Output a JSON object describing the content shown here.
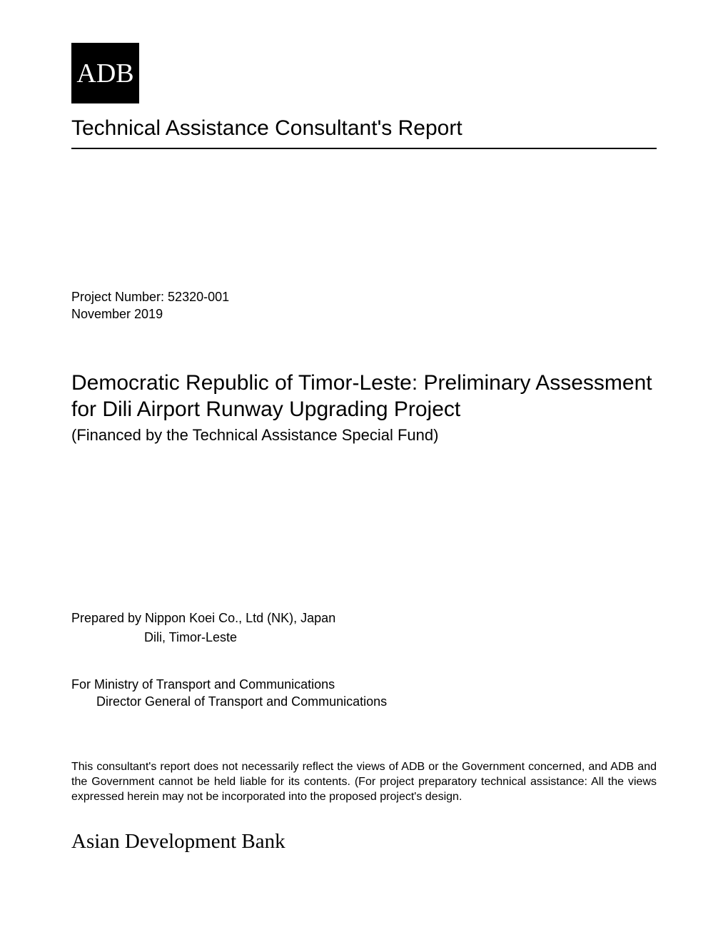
{
  "logo": {
    "text": "ADB"
  },
  "header": {
    "report_type": "Technical Assistance Consultant's Report"
  },
  "project": {
    "number_label": "Project Number: 52320-001",
    "date": "November 2019"
  },
  "title": {
    "main": "Democratic Republic of Timor-Leste: Preliminary Assessment for Dili Airport Runway Upgrading Project",
    "subtitle": "(Financed by the Technical Assistance Special Fund)"
  },
  "prepared": {
    "by_line": "Prepared by Nippon Koei Co., Ltd (NK), Japan",
    "location": "Dili, Timor-Leste"
  },
  "for": {
    "line1": "For  Ministry of Transport and Communications",
    "line2": "Director General of Transport and Communications"
  },
  "disclaimer": {
    "text": "This consultant's report does not necessarily reflect the views of ADB or the Government concerned, and ADB and the Government cannot be held liable for its contents. (For project preparatory technical assistance: All the views expressed herein may not be incorporated into the proposed project's design."
  },
  "footer": {
    "bank_name": "Asian Development Bank"
  }
}
